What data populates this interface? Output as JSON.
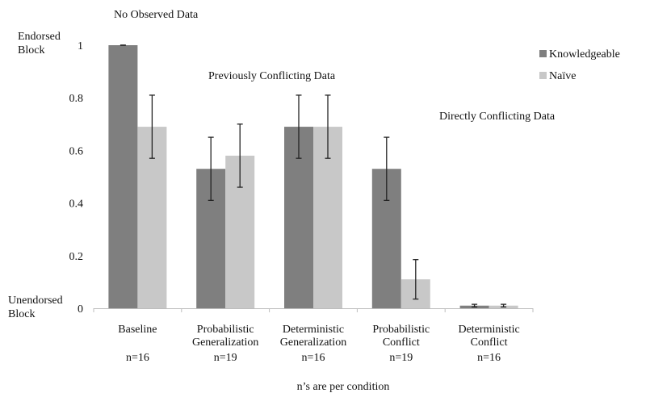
{
  "chart_data": {
    "type": "bar",
    "categories": [
      [
        "Baseline"
      ],
      [
        "Probabilistic",
        "Generalization"
      ],
      [
        "Deterministic",
        "Generalization"
      ],
      [
        "Probabilistic",
        "Conflict"
      ],
      [
        "Deterministic",
        "Conflict"
      ]
    ],
    "n_labels": [
      "n=16",
      "n=19",
      "n=16",
      "n=19",
      "n=16"
    ],
    "series": [
      {
        "name": "Knowledgeable",
        "color": "#7f7f7f",
        "values": [
          1.0,
          0.53,
          0.69,
          0.53,
          0.01
        ],
        "errors": [
          0.0,
          0.12,
          0.12,
          0.12,
          0.005
        ]
      },
      {
        "name": "Naïve",
        "color": "#c8c8c8",
        "values": [
          0.69,
          0.58,
          0.69,
          0.11,
          0.01
        ],
        "errors": [
          0.12,
          0.12,
          0.12,
          0.075,
          0.005
        ]
      }
    ],
    "ylim": [
      0,
      1
    ],
    "yticks": [
      "0",
      "0.2",
      "0.4",
      "0.6",
      "0.8",
      "1"
    ],
    "y_top_label": [
      "Endorsed",
      "Block"
    ],
    "y_bottom_label": [
      "Unendorsed",
      "Block"
    ],
    "group_annotations": [
      "No Observed Data",
      "Previously Conflicting Data",
      "Directly Conflicting Data"
    ],
    "footnote": "n’s are per condition",
    "legend_position": "top-right",
    "grid": false
  }
}
